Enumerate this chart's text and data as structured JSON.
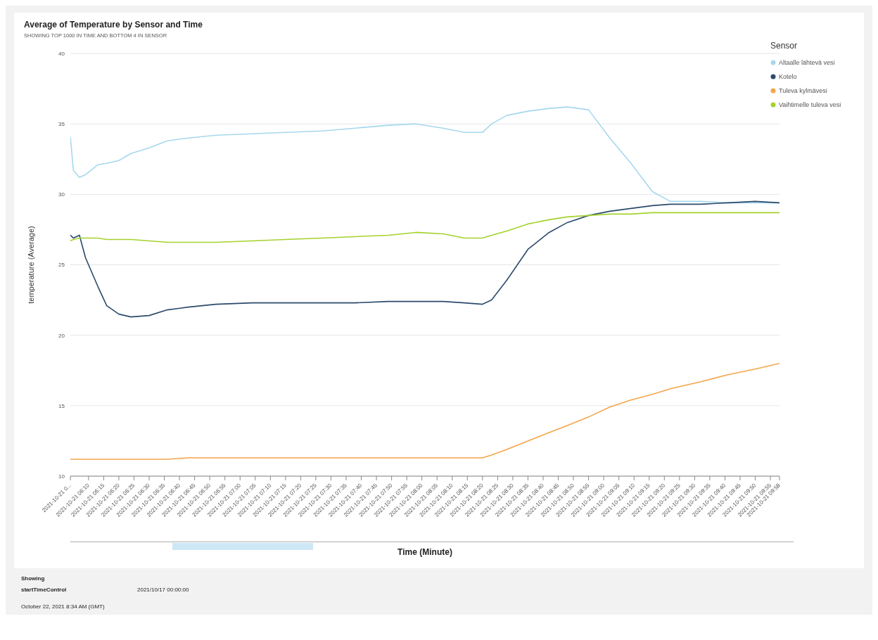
{
  "chart_data": {
    "type": "line",
    "title": "Average of Temperature by Sensor and Time",
    "subtitle": "SHOWING TOP 1000 IN TIME AND BOTTOM 4 IN SENSOR",
    "xlabel": "Time (Minute)",
    "ylabel": "temperature (Average)",
    "legend_title": "Sensor",
    "legend": "top right",
    "grid": "y",
    "marker": "none",
    "line_style": "solid",
    "x": [
      "2021-10-21T06:04",
      "2021-10-21T06:05",
      "2021-10-21T06:07",
      "2021-10-21T06:09",
      "2021-10-21T06:13",
      "2021-10-21T06:16",
      "2021-10-21T06:20",
      "2021-10-21T06:24",
      "2021-10-21T06:30",
      "2021-10-21T06:36",
      "2021-10-21T06:43",
      "2021-10-21T06:52",
      "2021-10-21T07:04",
      "2021-10-21T07:15",
      "2021-10-21T07:27",
      "2021-10-21T07:38",
      "2021-10-21T07:49",
      "2021-10-21T07:58",
      "2021-10-21T08:07",
      "2021-10-21T08:14",
      "2021-10-21T08:20",
      "2021-10-21T08:23",
      "2021-10-21T08:28",
      "2021-10-21T08:35",
      "2021-10-21T08:42",
      "2021-10-21T08:48",
      "2021-10-21T08:55",
      "2021-10-21T09:02",
      "2021-10-21T09:09",
      "2021-10-21T09:16",
      "2021-10-21T09:22",
      "2021-10-21T09:32",
      "2021-10-21T09:41",
      "2021-10-21T09:50",
      "2021-10-21T09:58"
    ],
    "series": [
      {
        "name": "Altaalle lähtevä vesi",
        "color": "#a6d8ee",
        "values": [
          34.1,
          31.7,
          31.2,
          31.4,
          32.1,
          32.2,
          32.4,
          32.9,
          33.3,
          33.8,
          34.0,
          34.2,
          34.3,
          34.4,
          34.5,
          34.7,
          34.9,
          35.0,
          34.7,
          34.4,
          34.4,
          35.0,
          35.6,
          35.9,
          36.1,
          36.2,
          36.0,
          34.0,
          32.2,
          30.2,
          29.5,
          29.5,
          29.4,
          29.4,
          29.4
        ]
      },
      {
        "name": "Kotelo",
        "color": "#2b4a6b",
        "values": [
          27.1,
          26.9,
          27.1,
          25.5,
          23.5,
          22.1,
          21.5,
          21.3,
          21.4,
          21.8,
          22.0,
          22.2,
          22.3,
          22.3,
          22.3,
          22.3,
          22.4,
          22.4,
          22.4,
          22.3,
          22.2,
          22.5,
          23.9,
          26.1,
          27.3,
          28.0,
          28.5,
          28.8,
          29.0,
          29.2,
          29.3,
          29.3,
          29.4,
          29.5,
          29.4
        ]
      },
      {
        "name": "Tuleva kylmävesi",
        "color": "#f5a54a",
        "values": [
          11.2,
          11.2,
          11.2,
          11.2,
          11.2,
          11.2,
          11.2,
          11.2,
          11.2,
          11.2,
          11.3,
          11.3,
          11.3,
          11.3,
          11.3,
          11.3,
          11.3,
          11.3,
          11.3,
          11.3,
          11.3,
          11.5,
          11.9,
          12.5,
          13.1,
          13.6,
          14.2,
          14.9,
          15.4,
          15.8,
          16.2,
          16.7,
          17.2,
          17.6,
          18.0
        ]
      },
      {
        "name": "Vaihtimelle tuleva vesi",
        "color": "#a5d22e",
        "values": [
          26.7,
          26.8,
          26.9,
          26.9,
          26.9,
          26.8,
          26.8,
          26.8,
          26.7,
          26.6,
          26.6,
          26.6,
          26.7,
          26.8,
          26.9,
          27.0,
          27.1,
          27.3,
          27.2,
          26.9,
          26.9,
          27.1,
          27.4,
          27.9,
          28.2,
          28.4,
          28.5,
          28.6,
          28.6,
          28.7,
          28.7,
          28.7,
          28.7,
          28.7,
          28.7
        ]
      }
    ],
    "xlim": [
      "2021-10-21T06:04",
      "2021-10-21T09:58"
    ],
    "xticks": [
      {
        "value": "2021-10-21T06:04",
        "label": "2021-10-21 0..."
      },
      {
        "value": "2021-10-21T06:10",
        "label": "2021-10-21 06:10"
      },
      {
        "value": "2021-10-21T06:15",
        "label": "2021-10-21 06:15"
      },
      {
        "value": "2021-10-21T06:20",
        "label": "2021-10-21 06:20"
      },
      {
        "value": "2021-10-21T06:25",
        "label": "2021-10-21 06:25"
      },
      {
        "value": "2021-10-21T06:30",
        "label": "2021-10-21 06:30"
      },
      {
        "value": "2021-10-21T06:35",
        "label": "2021-10-21 06:35"
      },
      {
        "value": "2021-10-21T06:40",
        "label": "2021-10-21 06:40"
      },
      {
        "value": "2021-10-21T06:45",
        "label": "2021-10-21 06:45"
      },
      {
        "value": "2021-10-21T06:50",
        "label": "2021-10-21 06:50"
      },
      {
        "value": "2021-10-21T06:55",
        "label": "2021-10-21 06:55"
      },
      {
        "value": "2021-10-21T07:00",
        "label": "2021-10-21 07:00"
      },
      {
        "value": "2021-10-21T07:05",
        "label": "2021-10-21 07:05"
      },
      {
        "value": "2021-10-21T07:10",
        "label": "2021-10-21 07:10"
      },
      {
        "value": "2021-10-21T07:15",
        "label": "2021-10-21 07:15"
      },
      {
        "value": "2021-10-21T07:20",
        "label": "2021-10-21 07:20"
      },
      {
        "value": "2021-10-21T07:25",
        "label": "2021-10-21 07:25"
      },
      {
        "value": "2021-10-21T07:30",
        "label": "2021-10-21 07:30"
      },
      {
        "value": "2021-10-21T07:35",
        "label": "2021-10-21 07:35"
      },
      {
        "value": "2021-10-21T07:40",
        "label": "2021-10-21 07:40"
      },
      {
        "value": "2021-10-21T07:45",
        "label": "2021-10-21 07:45"
      },
      {
        "value": "2021-10-21T07:50",
        "label": "2021-10-21 07:50"
      },
      {
        "value": "2021-10-21T07:55",
        "label": "2021-10-21 07:55"
      },
      {
        "value": "2021-10-21T08:00",
        "label": "2021-10-21 08:00"
      },
      {
        "value": "2021-10-21T08:05",
        "label": "2021-10-21 08:05"
      },
      {
        "value": "2021-10-21T08:10",
        "label": "2021-10-21 08:10"
      },
      {
        "value": "2021-10-21T08:15",
        "label": "2021-10-21 08:15"
      },
      {
        "value": "2021-10-21T08:20",
        "label": "2021-10-21 08:20"
      },
      {
        "value": "2021-10-21T08:25",
        "label": "2021-10-21 08:25"
      },
      {
        "value": "2021-10-21T08:30",
        "label": "2021-10-21 08:30"
      },
      {
        "value": "2021-10-21T08:35",
        "label": "2021-10-21 08:35"
      },
      {
        "value": "2021-10-21T08:40",
        "label": "2021-10-21 08:40"
      },
      {
        "value": "2021-10-21T08:45",
        "label": "2021-10-21 08:45"
      },
      {
        "value": "2021-10-21T08:50",
        "label": "2021-10-21 08:50"
      },
      {
        "value": "2021-10-21T08:55",
        "label": "2021-10-21 08:55"
      },
      {
        "value": "2021-10-21T09:00",
        "label": "2021-10-21 09:00"
      },
      {
        "value": "2021-10-21T09:05",
        "label": "2021-10-21 09:05"
      },
      {
        "value": "2021-10-21T09:10",
        "label": "2021-10-21 09:10"
      },
      {
        "value": "2021-10-21T09:15",
        "label": "2021-10-21 09:15"
      },
      {
        "value": "2021-10-21T09:20",
        "label": "2021-10-21 09:20"
      },
      {
        "value": "2021-10-21T09:25",
        "label": "2021-10-21 09:25"
      },
      {
        "value": "2021-10-21T09:30",
        "label": "2021-10-21 09:30"
      },
      {
        "value": "2021-10-21T09:35",
        "label": "2021-10-21 09:35"
      },
      {
        "value": "2021-10-21T09:40",
        "label": "2021-10-21 09:40"
      },
      {
        "value": "2021-10-21T09:45",
        "label": "2021-10-21 09:45"
      },
      {
        "value": "2021-10-21T09:50",
        "label": "2021-10-21 09:50"
      },
      {
        "value": "2021-10-21T09:55",
        "label": "2021-10-21 09:55"
      },
      {
        "value": "2021-10-21T09:58",
        "label": "2021-10-21 09:58"
      }
    ],
    "ylim": [
      10,
      40
    ],
    "yticks": [
      10,
      15,
      20,
      25,
      30,
      35,
      40
    ],
    "annotations": [
      "Showing",
      "startTimeControl",
      "2021/10/17 00:00:00",
      "October 22, 2021 8:34 AM (GMT)"
    ]
  }
}
